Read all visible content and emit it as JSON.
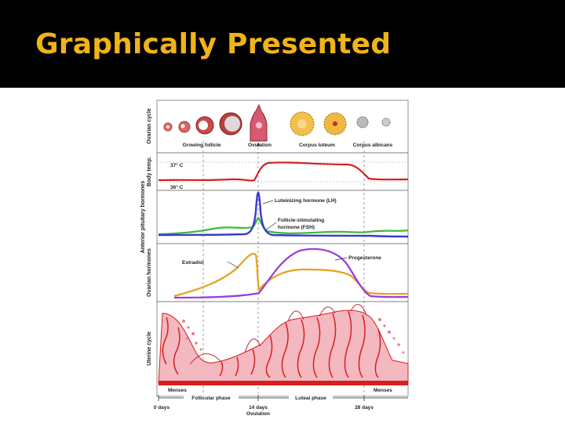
{
  "slide": {
    "title": "Graphically Presented"
  },
  "diagram": {
    "row_labels": {
      "ovarian_cycle": "Ovarian cycle",
      "body_temp": "Body temp.",
      "pituitary": "Anterior pituitary hormones",
      "ovarian_hormones": "Ovarian hormones",
      "uterine": "Uterine cycle"
    },
    "ovarian_stages": [
      "Growing follicle",
      "Ovulation",
      "Corpus luteum",
      "Corpus albicans"
    ],
    "temperatures": {
      "high": "37° C",
      "low": "36° C"
    },
    "hormone_labels": {
      "lh": "Luteinizing hormone (LH)",
      "fsh_line1": "Follicle-stimulating",
      "fsh_line2": "hormone (FSH)",
      "estradiol": "Estradiol",
      "progesterone": "Progesterone"
    },
    "menses_left": "Menses",
    "menses_right": "Menses",
    "phases": {
      "follicular": "Follicular phase",
      "luteal": "Luteal phase"
    },
    "day_labels": {
      "start": "0 days",
      "mid": "14 days",
      "end": "28 days",
      "ovulation": "Ovulation"
    },
    "colors": {
      "lh": "#3a3ad0",
      "fsh": "#3fb83a",
      "estradiol": "#e8a020",
      "progesterone": "#9a3ad8",
      "temperature": "#d42020",
      "endometrium": "#f4b8c0",
      "vessel": "#d42020",
      "title": "#f0b31a"
    }
  }
}
